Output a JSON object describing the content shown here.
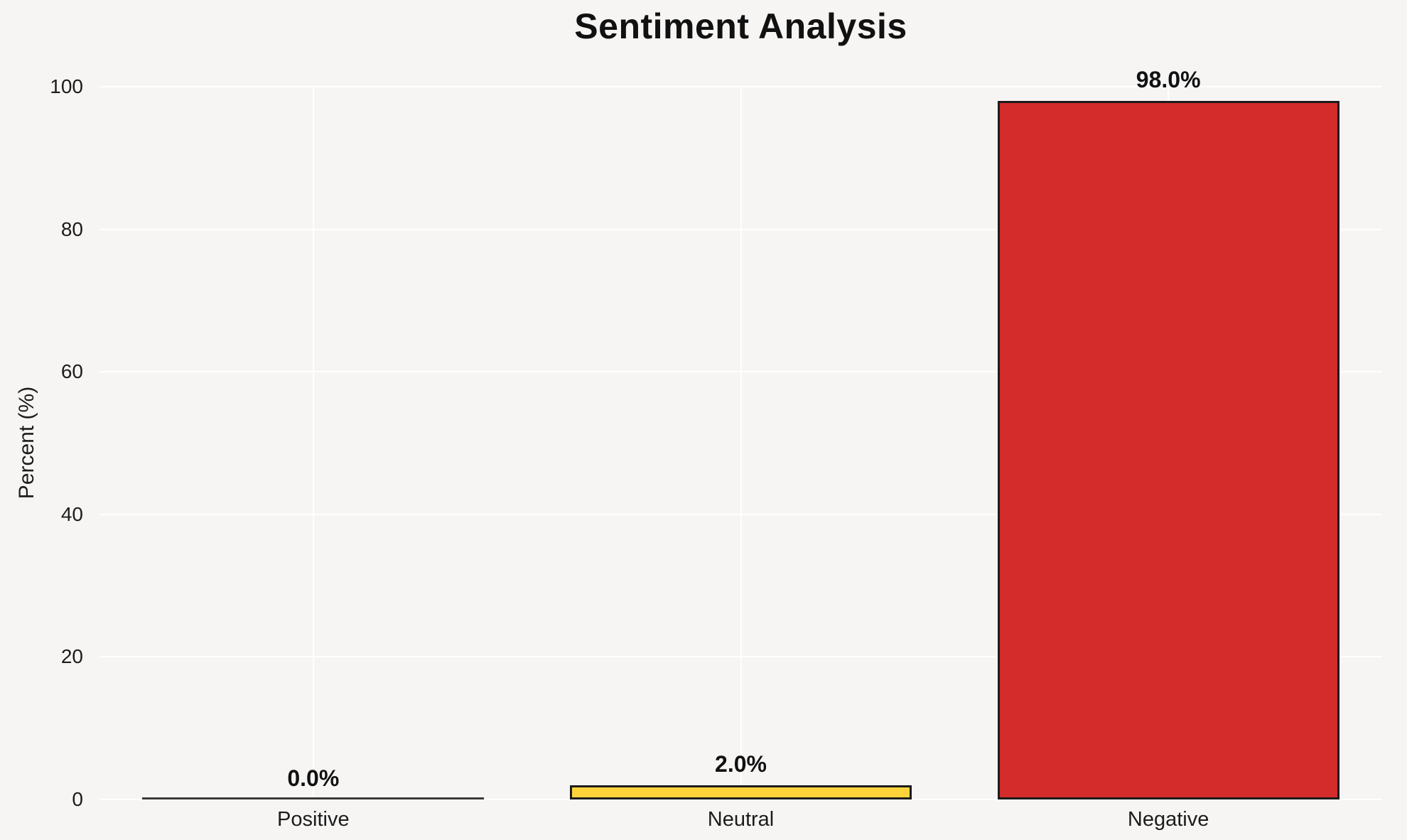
{
  "chart_data": {
    "type": "bar",
    "title": "Sentiment Analysis",
    "xlabel": "",
    "ylabel": "Percent (%)",
    "categories": [
      "Positive",
      "Neutral",
      "Negative"
    ],
    "values": [
      0.0,
      2.0,
      98.0
    ],
    "value_labels": [
      "0.0%",
      "2.0%",
      "98.0%"
    ],
    "bar_colors": [
      "#f6f5f4",
      "#ffd43b",
      "#d42b2b"
    ],
    "bar_edge_color": "#1c1c1c",
    "ylim": [
      0,
      100
    ],
    "yticks": [
      0,
      20,
      40,
      60,
      80,
      100
    ],
    "grid": true,
    "gridline_color": "#ffffff",
    "background_color": "#f6f5f4",
    "legend": "none"
  }
}
